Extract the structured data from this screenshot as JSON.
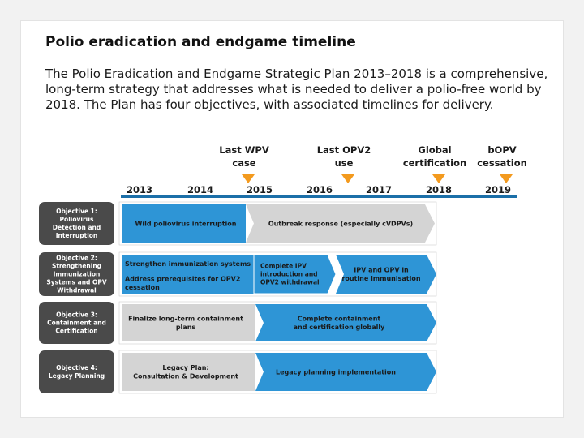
{
  "header": {
    "title": "Polio eradication and endgame timeline",
    "intro": "The Polio Eradication and Endgame Strategic Plan 2013–2018 is a comprehensive, long-term strategy that addresses what is needed to deliver a polio-free world by 2018. The Plan has four objectives, with associated timelines for delivery."
  },
  "milestones": [
    {
      "lines": [
        "Last WPV",
        "case"
      ]
    },
    {
      "lines": [
        "Last OPV2",
        "use"
      ]
    },
    {
      "lines": [
        "Global",
        "certification"
      ]
    },
    {
      "lines": [
        "bOPV",
        "cessation"
      ]
    }
  ],
  "years": [
    "2013",
    "2014",
    "2015",
    "2016",
    "2017",
    "2018",
    "2019"
  ],
  "objectives": [
    {
      "label": [
        "Objective 1:",
        "Poliovirus",
        "Detection and",
        "Interruption"
      ],
      "bands": [
        {
          "lines": [
            "Wild poliovirus interruption"
          ]
        },
        {
          "lines": [
            "Outbreak response (especially cVDPVs)"
          ]
        }
      ]
    },
    {
      "label": [
        "Objective 2:",
        "Strengthening",
        "Immunization",
        "Systems and OPV",
        "Withdrawal"
      ],
      "bands": [
        {
          "lines": [
            "Strengthen immunization systems"
          ]
        },
        {
          "lines": [
            "Address prerequisites for OPV2",
            "cessation"
          ]
        },
        {
          "lines": [
            "Complete IPV",
            "introduction and",
            "OPV2 withdrawal"
          ]
        },
        {
          "lines": [
            "IPV and OPV in",
            "routine immunisation"
          ]
        }
      ]
    },
    {
      "label": [
        "Objective 3:",
        "Containment and",
        "Certification"
      ],
      "bands": [
        {
          "lines": [
            "Finalize long-term containment",
            "plans"
          ]
        },
        {
          "lines": [
            "Complete containment",
            "and certification globally"
          ]
        }
      ]
    },
    {
      "label": [
        "Objective 4:",
        "Legacy Planning"
      ],
      "bands": [
        {
          "lines": [
            "Legacy Plan:",
            "Consultation & Development"
          ]
        },
        {
          "lines": [
            "Legacy planning implementation"
          ]
        }
      ]
    }
  ],
  "colors": {
    "label_box": "#4a4a4a",
    "blue": "#2e95d6",
    "gray": "#d4d4d4",
    "arrow": "#f39a1e",
    "axis": "#1b6fa8",
    "text_dark": "#1a1a1a",
    "text_white": "#ffffff"
  }
}
